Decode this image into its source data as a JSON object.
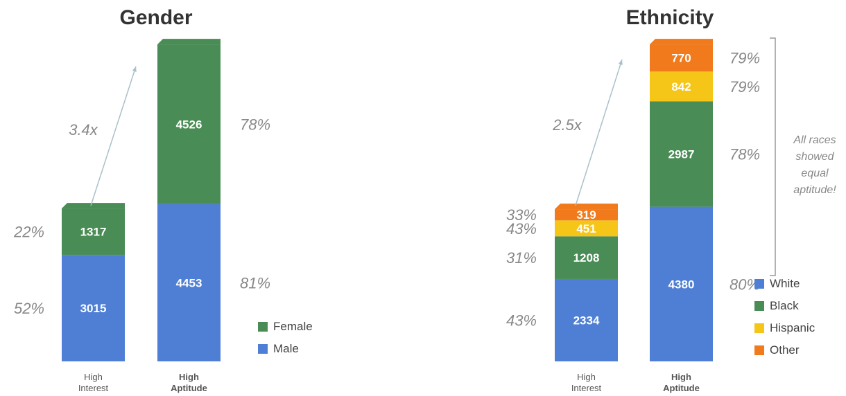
{
  "colors": {
    "white": "#4f7fd4",
    "black": "#4a8c55",
    "hispanic": "#f5c518",
    "other": "#f07a1c",
    "female": "#4a8c55",
    "male": "#4f7fd4"
  },
  "chart_data": [
    {
      "type": "bar",
      "stacked": true,
      "title": "Gender",
      "categories": [
        "High Interest",
        "High Aptitude"
      ],
      "category_lines": [
        [
          "High",
          "Interest"
        ],
        [
          "High",
          "Aptitude"
        ]
      ],
      "series": [
        {
          "name": "Male",
          "color_key": "male",
          "values": [
            3015,
            4453
          ],
          "pct_labels": [
            "52%",
            "81%"
          ]
        },
        {
          "name": "Female",
          "color_key": "female",
          "values": [
            1317,
            4526
          ],
          "pct_labels": [
            "22%",
            "78%"
          ]
        }
      ],
      "multiplier_label": "3.4x",
      "legend": [
        "Female",
        "Male"
      ],
      "legend_position": "bottom-right"
    },
    {
      "type": "bar",
      "stacked": true,
      "title": "Ethnicity",
      "categories": [
        "High Interest",
        "High Aptitude"
      ],
      "category_lines": [
        [
          "High",
          "Interest"
        ],
        [
          "High",
          "Aptitude"
        ]
      ],
      "series": [
        {
          "name": "White",
          "color_key": "white",
          "values": [
            2334,
            4380
          ],
          "pct_labels": [
            "43%",
            "80%"
          ]
        },
        {
          "name": "Black",
          "color_key": "black",
          "values": [
            1208,
            2987
          ],
          "pct_labels": [
            "31%",
            "78%"
          ]
        },
        {
          "name": "Hispanic",
          "color_key": "hispanic",
          "values": [
            451,
            842
          ],
          "pct_labels": [
            "43%",
            "79%"
          ]
        },
        {
          "name": "Other",
          "color_key": "other",
          "values": [
            319,
            770
          ],
          "pct_labels": [
            "33%",
            "79%"
          ]
        }
      ],
      "multiplier_label": "2.5x",
      "annotation_lines": [
        "All races",
        "showed",
        "equal",
        "aptitude!"
      ],
      "legend": [
        "White",
        "Black",
        "Hispanic",
        "Other"
      ],
      "legend_position": "bottom-right"
    }
  ]
}
